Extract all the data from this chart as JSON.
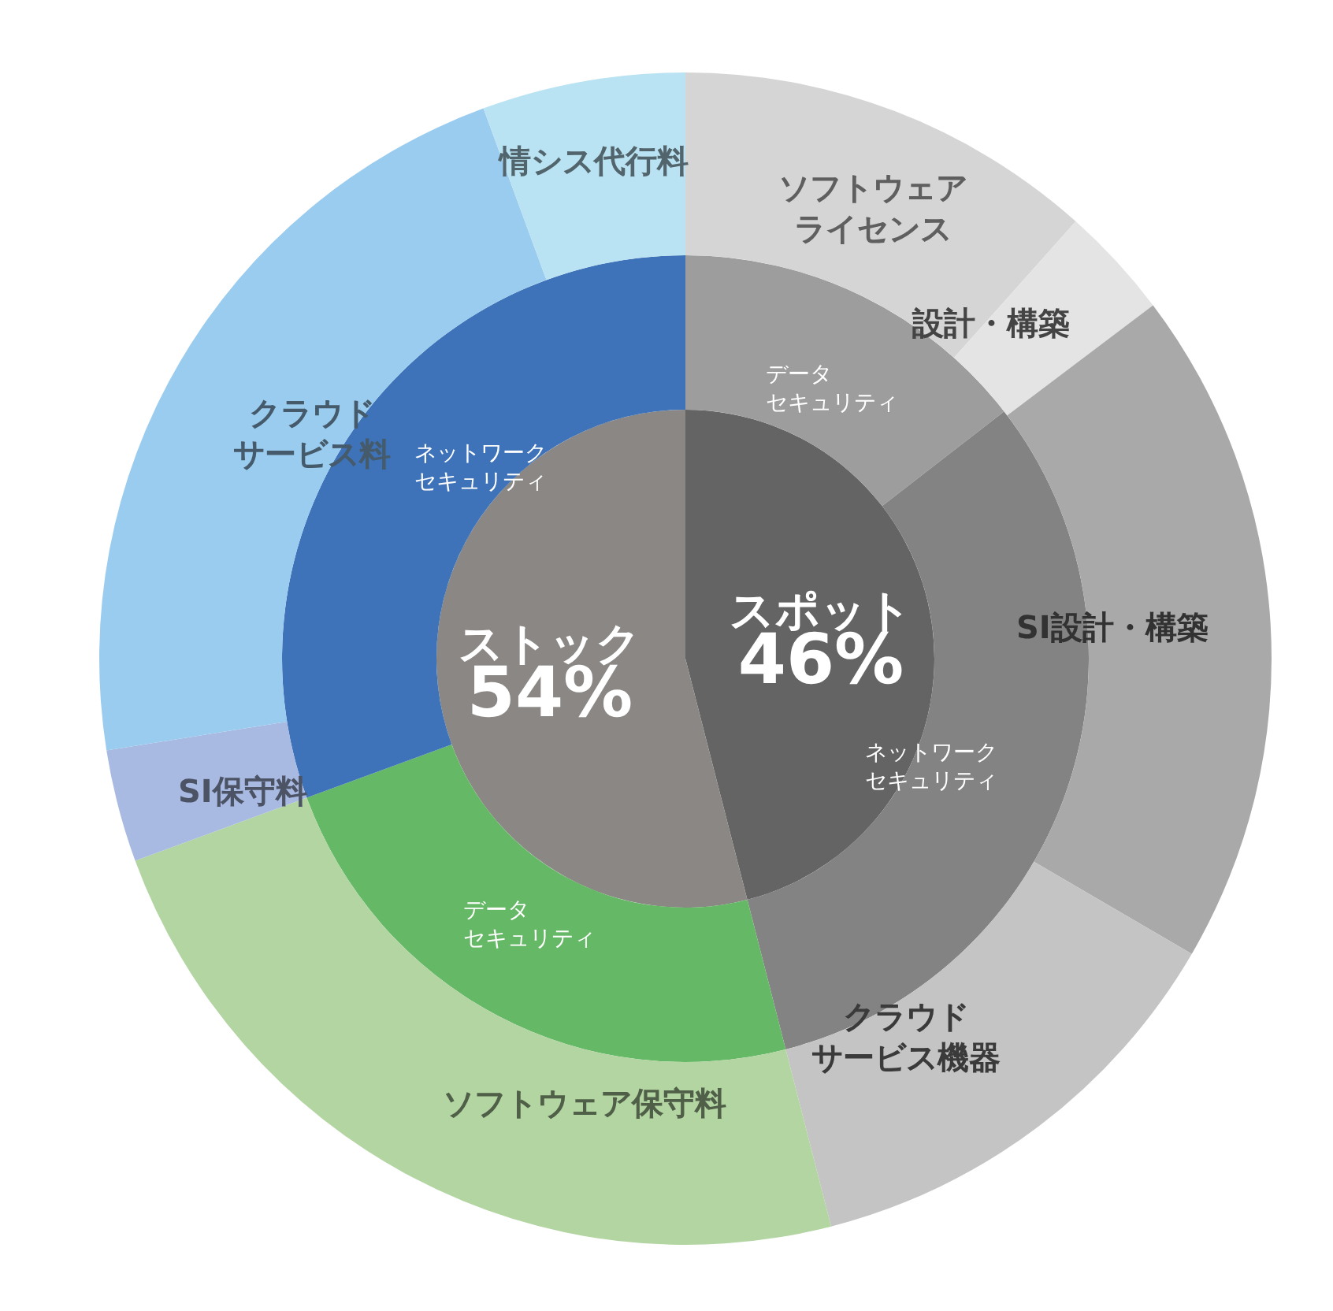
{
  "chart_data": [
    {
      "type": "pie",
      "categories": [
        "スポット",
        "ストック"
      ],
      "values": [
        46,
        54
      ],
      "colors": [
        "#646464",
        "#8a8784"
      ],
      "value_labels": [
        "46%",
        "54%"
      ]
    },
    {
      "type": "donut",
      "categories": [
        "データセキュリティ",
        "ネットワークセキュリティ",
        "データセキュリティ",
        "ネットワークセキュリティ"
      ],
      "values": [
        14.5,
        31.5,
        23.4,
        30.6
      ],
      "colors": [
        "#9c9d9c",
        "#838383",
        "#65b865",
        "#3e73b9"
      ]
    },
    {
      "type": "donut",
      "categories": [
        "ソフトウェアライセンス",
        "設計・構築",
        "SI設計・構築",
        "クラウドサービス機器",
        "ソフトウェア保守料",
        "SI保守料",
        "クラウドサービス料",
        "情シス代行料"
      ],
      "values": [
        11.6,
        3.1,
        18.7,
        12.6,
        23.4,
        3.1,
        21.9,
        5.6
      ],
      "colors": [
        "#d4d5d4",
        "#e4e4e4",
        "#a9a9a9",
        "#c4c4c4",
        "#b2d5a2",
        "#a8b9e2",
        "#9accef",
        "#b9e2f2"
      ]
    }
  ]
}
